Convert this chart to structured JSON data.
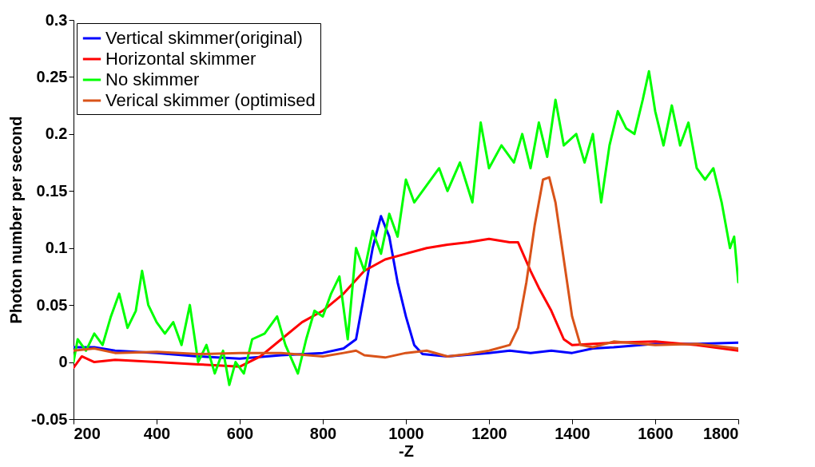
{
  "chart_data": {
    "type": "line",
    "xlabel": "-Z",
    "ylabel": "Photon number per second",
    "xlim": [
      200,
      1800
    ],
    "ylim": [
      -0.05,
      0.3
    ],
    "xticks": [
      200,
      400,
      600,
      800,
      1000,
      1200,
      1400,
      1600,
      1800
    ],
    "yticks": [
      -0.05,
      0,
      0.05,
      0.1,
      0.15,
      0.2,
      0.25,
      0.3
    ],
    "grid": false,
    "legend": "top left",
    "line_style": "solid",
    "marker": "none",
    "series": [
      {
        "name": "Vertical skimmer(original)",
        "color": "#0000ff",
        "x": [
          200,
          250,
          300,
          400,
          500,
          600,
          700,
          800,
          850,
          880,
          900,
          920,
          940,
          960,
          980,
          1000,
          1020,
          1040,
          1100,
          1200,
          1250,
          1300,
          1350,
          1400,
          1450,
          1500,
          1600,
          1700,
          1800
        ],
        "values": [
          0.013,
          0.013,
          0.01,
          0.008,
          0.005,
          0.003,
          0.006,
          0.008,
          0.012,
          0.02,
          0.06,
          0.1,
          0.128,
          0.11,
          0.07,
          0.04,
          0.015,
          0.007,
          0.005,
          0.008,
          0.01,
          0.008,
          0.01,
          0.008,
          0.012,
          0.013,
          0.016,
          0.016,
          0.017
        ]
      },
      {
        "name": "Horizontal skimmer",
        "color": "#ff0000",
        "x": [
          200,
          220,
          250,
          300,
          400,
          500,
          600,
          650,
          700,
          750,
          800,
          850,
          900,
          950,
          1000,
          1050,
          1100,
          1150,
          1200,
          1250,
          1270,
          1300,
          1320,
          1350,
          1380,
          1400,
          1500,
          1600,
          1700,
          1800
        ],
        "values": [
          -0.005,
          0.005,
          0.0,
          0.002,
          0.0,
          -0.002,
          -0.004,
          0.005,
          0.02,
          0.035,
          0.045,
          0.06,
          0.08,
          0.09,
          0.095,
          0.1,
          0.103,
          0.105,
          0.108,
          0.105,
          0.105,
          0.08,
          0.065,
          0.045,
          0.02,
          0.015,
          0.017,
          0.018,
          0.015,
          0.01
        ]
      },
      {
        "name": "No skimmer",
        "color": "#00ff00",
        "x": [
          200,
          210,
          230,
          250,
          270,
          290,
          310,
          330,
          350,
          365,
          380,
          400,
          420,
          440,
          460,
          480,
          500,
          520,
          540,
          560,
          575,
          590,
          610,
          630,
          660,
          690,
          710,
          740,
          760,
          780,
          800,
          820,
          840,
          860,
          880,
          900,
          920,
          940,
          960,
          980,
          1000,
          1020,
          1050,
          1080,
          1100,
          1130,
          1160,
          1180,
          1200,
          1230,
          1260,
          1280,
          1300,
          1320,
          1340,
          1360,
          1380,
          1410,
          1430,
          1450,
          1470,
          1490,
          1510,
          1530,
          1550,
          1570,
          1585,
          1600,
          1620,
          1640,
          1660,
          1680,
          1700,
          1720,
          1740,
          1760,
          1780,
          1790,
          1800
        ],
        "values": [
          0.0,
          0.02,
          0.01,
          0.025,
          0.015,
          0.04,
          0.06,
          0.03,
          0.045,
          0.08,
          0.05,
          0.035,
          0.025,
          0.035,
          0.015,
          0.05,
          0.0,
          0.015,
          -0.01,
          0.01,
          -0.02,
          0.0,
          -0.01,
          0.02,
          0.025,
          0.04,
          0.015,
          -0.01,
          0.02,
          0.045,
          0.04,
          0.06,
          0.075,
          0.02,
          0.1,
          0.08,
          0.115,
          0.095,
          0.13,
          0.11,
          0.16,
          0.14,
          0.155,
          0.17,
          0.15,
          0.175,
          0.14,
          0.21,
          0.17,
          0.19,
          0.175,
          0.2,
          0.17,
          0.21,
          0.18,
          0.23,
          0.19,
          0.2,
          0.175,
          0.2,
          0.14,
          0.19,
          0.22,
          0.205,
          0.2,
          0.23,
          0.255,
          0.22,
          0.19,
          0.225,
          0.19,
          0.21,
          0.17,
          0.16,
          0.17,
          0.14,
          0.1,
          0.11,
          0.07
        ]
      },
      {
        "name": "Verical skimmer (optimised",
        "color": "#d95319",
        "x": [
          200,
          250,
          300,
          400,
          500,
          600,
          700,
          800,
          850,
          880,
          900,
          950,
          1000,
          1050,
          1100,
          1150,
          1200,
          1250,
          1270,
          1290,
          1310,
          1330,
          1345,
          1360,
          1380,
          1400,
          1420,
          1450,
          1500,
          1600,
          1700,
          1800
        ],
        "values": [
          0.01,
          0.012,
          0.008,
          0.009,
          0.007,
          0.008,
          0.008,
          0.005,
          0.008,
          0.01,
          0.006,
          0.004,
          0.008,
          0.01,
          0.005,
          0.007,
          0.01,
          0.015,
          0.03,
          0.07,
          0.12,
          0.16,
          0.162,
          0.14,
          0.09,
          0.04,
          0.015,
          0.013,
          0.018,
          0.015,
          0.016,
          0.012
        ]
      }
    ]
  }
}
